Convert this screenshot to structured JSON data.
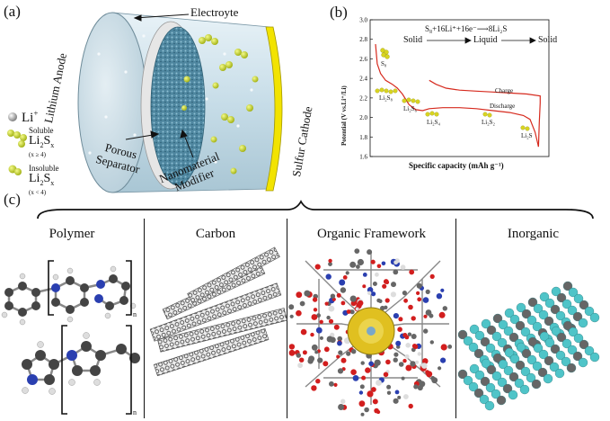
{
  "panel_a": {
    "letter": "(a)",
    "electrolyte_label": "Electroyte",
    "anode_label": "Lithium Anode",
    "cathode_label": "Sulfur Cathode",
    "separator_label": [
      "Porous",
      "Separator"
    ],
    "modifier_label": [
      "Nanomaterial",
      "Modifier"
    ],
    "legend": {
      "li": "Li",
      "li_sup": "+",
      "soluble_title": "Soluble",
      "soluble_formula": "Li",
      "soluble_sub": "2",
      "soluble_S": "S",
      "soluble_x": "x",
      "soluble_cond": "(x ≥ 4)",
      "insoluble_title": "Insoluble",
      "insoluble_formula": "Li",
      "insoluble_sub": "2",
      "insoluble_S": "S",
      "insoluble_x": "x",
      "insoluble_cond": "(x < 4)"
    },
    "colors": {
      "cylinder": "#cfe3ec",
      "modifier": "#5a8fa8",
      "cathode": "#f2e300",
      "polysulfide": "#c8d82c"
    }
  },
  "panel_b": {
    "letter": "(b)",
    "reaction": "S₈+16Li⁺+16e⁻⟶8Li₂S",
    "phases": [
      "Solid",
      "Liquid",
      "Solid"
    ],
    "species": [
      "S₈",
      "Li₂S₈",
      "Li₂S₆",
      "Li₂S₄",
      "Li₂S₂",
      "Li₂S"
    ],
    "curve_labels": {
      "charge": "Charge",
      "discharge": "Discharge"
    },
    "colors": {
      "curve": "#d62a1e",
      "sulfur": "#d8d420"
    }
  },
  "chart_data": {
    "type": "line",
    "title": "",
    "xlabel": "Specific capacity (mAh g⁻¹)",
    "ylabel": "Potential (V vs.Li⁺/Li)",
    "ylim": [
      1.6,
      3.0
    ],
    "yticks": [
      "1.6",
      "1.8",
      "2.0",
      "2.2",
      "2.4",
      "2.6",
      "2.8",
      "3.0"
    ],
    "x_relative": [
      0,
      1
    ],
    "series": [
      {
        "name": "Discharge",
        "x": [
          0.0,
          0.01,
          0.03,
          0.06,
          0.1,
          0.13,
          0.16,
          0.2,
          0.24,
          0.28,
          0.32,
          0.4,
          0.5,
          0.6,
          0.7,
          0.8,
          0.88,
          0.92,
          0.95,
          0.97
        ],
        "y": [
          2.75,
          2.55,
          2.45,
          2.38,
          2.34,
          2.3,
          2.24,
          2.13,
          2.08,
          2.07,
          2.09,
          2.1,
          2.1,
          2.09,
          2.07,
          2.05,
          2.02,
          1.98,
          1.85,
          1.7
        ]
      },
      {
        "name": "Charge",
        "x": [
          0.97,
          0.975,
          0.98,
          0.98,
          0.9,
          0.8,
          0.7,
          0.6,
          0.5,
          0.42,
          0.36,
          0.32
        ],
        "y": [
          1.7,
          1.95,
          2.15,
          2.22,
          2.24,
          2.25,
          2.26,
          2.27,
          2.28,
          2.3,
          2.34,
          2.38
        ]
      }
    ]
  },
  "panel_c": {
    "letter": "(c)",
    "categories": [
      "Polymer",
      "Carbon",
      "Organic Framework",
      "Inorganic"
    ],
    "subscript_n": "n",
    "colors": {
      "carbon_atom": "#555555",
      "hydrogen_atom": "#dddddd",
      "nitrogen_atom": "#2a3fb0",
      "oxygen_atom": "#d21e1e",
      "inorganic_atom": "#4fc4c8",
      "framework_core": "#e0c020"
    }
  }
}
